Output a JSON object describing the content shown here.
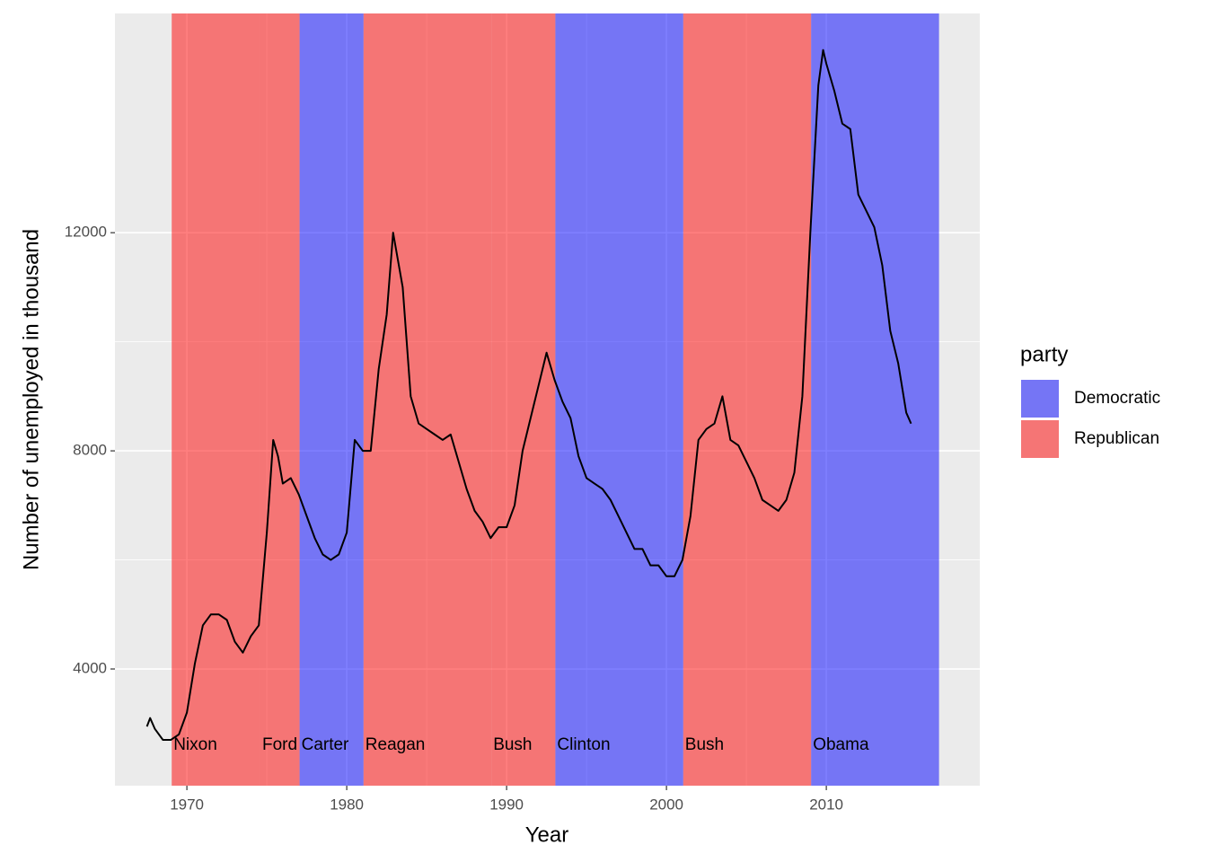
{
  "chart_data": {
    "type": "line",
    "x_label": "Year",
    "y_label": "Number of unemployed in thousand",
    "color": "#000000",
    "x": [
      1967.5,
      1967.7,
      1968.0,
      1968.5,
      1969.0,
      1969.5,
      1970.0,
      1970.5,
      1971.0,
      1971.5,
      1972.0,
      1972.5,
      1973.0,
      1973.5,
      1974.0,
      1974.5,
      1975.0,
      1975.4,
      1975.7,
      1976.0,
      1976.5,
      1977.0,
      1977.5,
      1978.0,
      1978.5,
      1979.0,
      1979.5,
      1980.0,
      1980.5,
      1981.0,
      1981.5,
      1982.0,
      1982.5,
      1982.9,
      1983.5,
      1984.0,
      1984.5,
      1985.0,
      1985.5,
      1986.0,
      1986.5,
      1987.0,
      1987.5,
      1988.0,
      1988.5,
      1989.0,
      1989.5,
      1990.0,
      1990.5,
      1991.0,
      1991.5,
      1992.0,
      1992.5,
      1993.0,
      1993.5,
      1994.0,
      1994.5,
      1995.0,
      1995.5,
      1996.0,
      1996.5,
      1997.0,
      1997.5,
      1998.0,
      1998.5,
      1999.0,
      1999.5,
      2000.0,
      2000.5,
      2001.0,
      2001.5,
      2002.0,
      2002.5,
      2003.0,
      2003.5,
      2004.0,
      2004.5,
      2005.0,
      2005.5,
      2006.0,
      2006.5,
      2007.0,
      2007.5,
      2008.0,
      2008.5,
      2009.0,
      2009.5,
      2009.8,
      2010.0,
      2010.5,
      2011.0,
      2011.5,
      2012.0,
      2012.5,
      2013.0,
      2013.5,
      2014.0,
      2014.5,
      2015.0,
      2015.3
    ],
    "values": [
      2944,
      3100,
      2900,
      2700,
      2700,
      2800,
      3200,
      4100,
      4800,
      5000,
      5000,
      4900,
      4500,
      4300,
      4600,
      4800,
      6500,
      8200,
      7900,
      7400,
      7500,
      7200,
      6800,
      6400,
      6100,
      6000,
      6100,
      6500,
      8200,
      8000,
      8000,
      9500,
      10500,
      12000,
      11000,
      9000,
      8500,
      8400,
      8300,
      8200,
      8300,
      7800,
      7300,
      6900,
      6700,
      6400,
      6600,
      6600,
      7000,
      8000,
      8600,
      9200,
      9800,
      9300,
      8900,
      8600,
      7900,
      7500,
      7400,
      7300,
      7100,
      6800,
      6500,
      6200,
      6200,
      5900,
      5900,
      5700,
      5700,
      6000,
      6800,
      8200,
      8400,
      8500,
      9000,
      8200,
      8100,
      7800,
      7500,
      7100,
      7000,
      6900,
      7100,
      7600,
      9000,
      12000,
      14700,
      15350,
      15100,
      14600,
      14000,
      13900,
      12700,
      12400,
      12100,
      11400,
      10200,
      9600,
      8700,
      8500
    ],
    "presidents": [
      {
        "name": "Nixon",
        "party": "Republican",
        "start": 1969.05,
        "end": 1974.6
      },
      {
        "name": "Ford",
        "party": "Republican",
        "start": 1974.6,
        "end": 1977.05
      },
      {
        "name": "Carter",
        "party": "Democratic",
        "start": 1977.05,
        "end": 1981.05
      },
      {
        "name": "Reagan",
        "party": "Republican",
        "start": 1981.05,
        "end": 1989.05
      },
      {
        "name": "Bush",
        "party": "Republican",
        "start": 1989.05,
        "end": 1993.05
      },
      {
        "name": "Clinton",
        "party": "Democratic",
        "start": 1993.05,
        "end": 2001.05
      },
      {
        "name": "Bush",
        "party": "Republican",
        "start": 2001.05,
        "end": 2009.05
      },
      {
        "name": "Obama",
        "party": "Democratic",
        "start": 2009.05,
        "end": 2017.05
      }
    ],
    "legend": {
      "title": "party",
      "entries": [
        {
          "name": "Democratic",
          "color": "blue"
        },
        {
          "name": "Republican",
          "color": "red"
        }
      ]
    },
    "xlim": [
      1965.5,
      2019.6
    ],
    "ylim": [
      1860,
      16020
    ],
    "xticks": [
      1970,
      1980,
      1990,
      2000,
      2010
    ],
    "yticks": [
      4000,
      8000,
      12000
    ],
    "grid": true
  }
}
